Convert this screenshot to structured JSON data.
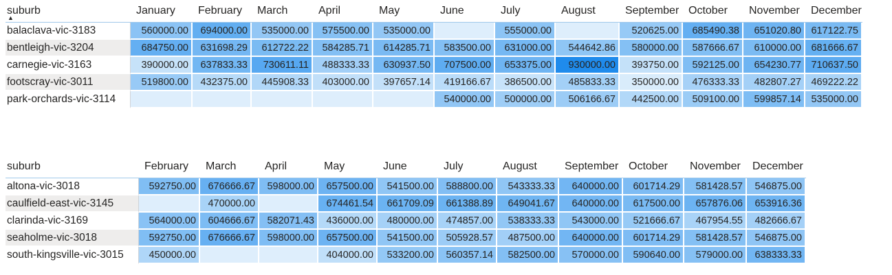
{
  "tables": [
    {
      "id": "t1",
      "row_header": "suburb",
      "sort_icon": "sort-ascending-icon",
      "columns": [
        "January",
        "February",
        "March",
        "April",
        "May",
        "June",
        "July",
        "August",
        "September",
        "October",
        "November",
        "December"
      ],
      "rows": [
        {
          "label": "balaclava-vic-3183",
          "values": [
            "560000.00",
            "694000.00",
            "535000.00",
            "575500.00",
            "535000.00",
            "",
            "555000.00",
            "",
            "520625.00",
            "685490.38",
            "651020.80",
            "617122.75"
          ]
        },
        {
          "label": "bentleigh-vic-3204",
          "values": [
            "684750.00",
            "631698.29",
            "612722.22",
            "584285.71",
            "614285.71",
            "583500.00",
            "631000.00",
            "544642.86",
            "580000.00",
            "587666.67",
            "610000.00",
            "681666.67"
          ]
        },
        {
          "label": "carnegie-vic-3163",
          "values": [
            "390000.00",
            "637833.33",
            "730611.11",
            "488333.33",
            "630937.50",
            "707500.00",
            "653375.00",
            "930000.00",
            "393750.00",
            "592125.00",
            "654230.77",
            "710637.50"
          ]
        },
        {
          "label": "footscray-vic-3011",
          "values": [
            "519800.00",
            "432375.00",
            "445908.33",
            "403000.00",
            "397657.14",
            "419166.67",
            "386500.00",
            "485833.33",
            "350000.00",
            "476333.33",
            "482807.27",
            "469222.22"
          ]
        },
        {
          "label": "park-orchards-vic-3114",
          "values": [
            "",
            "",
            "",
            "",
            "",
            "540000.00",
            "500000.00",
            "506166.67",
            "442500.00",
            "509100.00",
            "599857.14",
            "535000.00"
          ]
        }
      ]
    },
    {
      "id": "t2",
      "row_header": "suburb",
      "columns": [
        "February",
        "March",
        "April",
        "May",
        "June",
        "July",
        "August",
        "September",
        "October",
        "November",
        "December"
      ],
      "rows": [
        {
          "label": "altona-vic-3018",
          "values": [
            "592750.00",
            "676666.67",
            "598000.00",
            "657500.00",
            "541500.00",
            "588800.00",
            "543333.33",
            "640000.00",
            "601714.29",
            "581428.57",
            "546875.00"
          ]
        },
        {
          "label": "caulfield-east-vic-3145",
          "values": [
            "",
            "470000.00",
            "",
            "674461.54",
            "661709.09",
            "661388.89",
            "649041.67",
            "640000.00",
            "617500.00",
            "657876.06",
            "653916.36"
          ]
        },
        {
          "label": "clarinda-vic-3169",
          "values": [
            "564000.00",
            "604666.67",
            "582071.43",
            "436000.00",
            "480000.00",
            "474857.00",
            "538333.33",
            "543000.00",
            "521666.67",
            "467954.55",
            "482666.67"
          ]
        },
        {
          "label": "seaholme-vic-3018",
          "values": [
            "592750.00",
            "676666.67",
            "598000.00",
            "657500.00",
            "541500.00",
            "505928.57",
            "487500.00",
            "640000.00",
            "601714.29",
            "581428.57",
            "546875.00"
          ]
        },
        {
          "label": "south-kingsville-vic-3015",
          "values": [
            "450000.00",
            "",
            "",
            "404000.00",
            "533200.00",
            "560357.14",
            "582500.00",
            "570000.00",
            "590640.00",
            "579000.00",
            "638333.33"
          ]
        }
      ]
    }
  ],
  "colors": {
    "scale_min": "#d9ecfb",
    "scale_max": "#1f8bec",
    "empty_cell": "#deeefc",
    "header_rule": "#9fc7ea"
  }
}
